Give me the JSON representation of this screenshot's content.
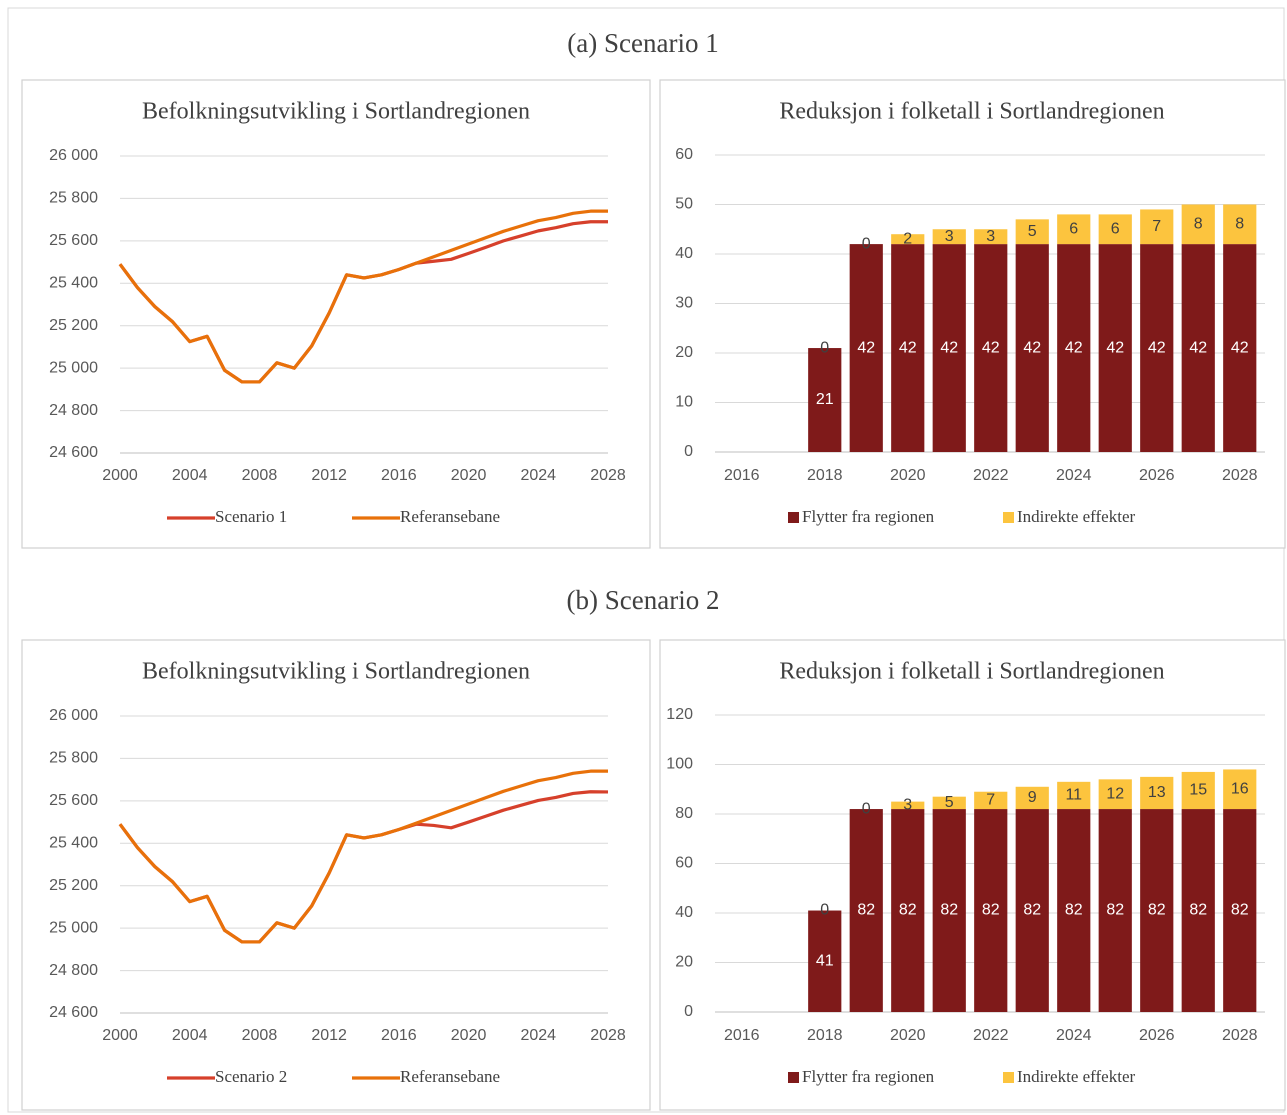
{
  "headings": [
    "(a) Scenario 1",
    "(b) Scenario 2"
  ],
  "chart_data": [
    {
      "type": "line",
      "title": "Befolkningsutvikling i Sortlandregionen",
      "x": [
        2000,
        2001,
        2002,
        2003,
        2004,
        2005,
        2006,
        2007,
        2008,
        2009,
        2010,
        2011,
        2012,
        2013,
        2014,
        2015,
        2016,
        2017,
        2018,
        2019,
        2020,
        2021,
        2022,
        2023,
        2024,
        2025,
        2026,
        2027,
        2028
      ],
      "series": [
        {
          "name": "Scenario 1",
          "color": "#d6402b",
          "values": [
            25490,
            25380,
            25290,
            25220,
            25125,
            25150,
            24990,
            24935,
            24935,
            25025,
            25000,
            25105,
            25260,
            25440,
            25425,
            25440,
            25465,
            25495,
            25504,
            25513,
            25541,
            25570,
            25600,
            25623,
            25647,
            25662,
            25681,
            25690,
            25690
          ]
        },
        {
          "name": "Referansebane",
          "color": "#e8710a",
          "values": [
            25490,
            25380,
            25290,
            25220,
            25125,
            25150,
            24990,
            24935,
            24935,
            25025,
            25000,
            25105,
            25260,
            25440,
            25425,
            25440,
            25465,
            25495,
            25525,
            25555,
            25585,
            25615,
            25645,
            25670,
            25695,
            25710,
            25730,
            25740,
            25740
          ]
        }
      ],
      "xlim": [
        2000,
        2028
      ],
      "xticks": [
        2000,
        2004,
        2008,
        2012,
        2016,
        2020,
        2024,
        2028
      ],
      "ylim": [
        24600,
        26000
      ],
      "yticks": [
        {
          "value": 24600,
          "label": "24 600"
        },
        {
          "value": 24800,
          "label": "24 800"
        },
        {
          "value": 25000,
          "label": "25 000"
        },
        {
          "value": 25200,
          "label": "25 200"
        },
        {
          "value": 25400,
          "label": "25 400"
        },
        {
          "value": 25600,
          "label": "25 600"
        },
        {
          "value": 25800,
          "label": "25 800"
        },
        {
          "value": 26000,
          "label": "26 000"
        }
      ],
      "grid": true,
      "legend": "bottom"
    },
    {
      "type": "stacked_bar",
      "title": "Reduksjon i folketall i Sortlandregionen",
      "categories": [
        2016,
        null,
        2018,
        null,
        2020,
        null,
        2022,
        null,
        2024,
        null,
        2026,
        null,
        2028
      ],
      "series": [
        {
          "name": "Flytter fra regionen",
          "color": "#7f1a1a",
          "values": [
            null,
            null,
            21,
            42,
            42,
            42,
            42,
            42,
            42,
            42,
            42,
            42,
            42
          ]
        },
        {
          "name": "Indirekte effekter",
          "color": "#fcc43e",
          "values": [
            null,
            null,
            0,
            0,
            2,
            3,
            3,
            5,
            6,
            6,
            7,
            8,
            8
          ]
        }
      ],
      "ylim": [
        0,
        60
      ],
      "yticks": [
        0,
        10,
        20,
        30,
        40,
        50,
        60
      ],
      "grid": true,
      "legend": "bottom"
    },
    {
      "type": "line",
      "title": "Befolkningsutvikling i Sortlandregionen",
      "x": [
        2000,
        2001,
        2002,
        2003,
        2004,
        2005,
        2006,
        2007,
        2008,
        2009,
        2010,
        2011,
        2012,
        2013,
        2014,
        2015,
        2016,
        2017,
        2018,
        2019,
        2020,
        2021,
        2022,
        2023,
        2024,
        2025,
        2026,
        2027,
        2028
      ],
      "series": [
        {
          "name": "Scenario 2",
          "color": "#d6402b",
          "values": [
            25490,
            25380,
            25290,
            25220,
            25125,
            25150,
            24990,
            24935,
            24935,
            25025,
            25000,
            25105,
            25260,
            25440,
            25425,
            25440,
            25465,
            25490,
            25484,
            25473,
            25500,
            25528,
            25556,
            25579,
            25602,
            25616,
            25635,
            25643,
            25642
          ]
        },
        {
          "name": "Referansebane",
          "color": "#e8710a",
          "values": [
            25490,
            25380,
            25290,
            25220,
            25125,
            25150,
            24990,
            24935,
            24935,
            25025,
            25000,
            25105,
            25260,
            25440,
            25425,
            25440,
            25465,
            25495,
            25525,
            25555,
            25585,
            25615,
            25645,
            25670,
            25695,
            25710,
            25730,
            25740,
            25740
          ]
        }
      ],
      "xlim": [
        2000,
        2028
      ],
      "xticks": [
        2000,
        2004,
        2008,
        2012,
        2016,
        2020,
        2024,
        2028
      ],
      "ylim": [
        24600,
        26000
      ],
      "yticks": [
        {
          "value": 24600,
          "label": "24 600"
        },
        {
          "value": 24800,
          "label": "24 800"
        },
        {
          "value": 25000,
          "label": "25 000"
        },
        {
          "value": 25200,
          "label": "25 200"
        },
        {
          "value": 25400,
          "label": "25 400"
        },
        {
          "value": 25600,
          "label": "25 600"
        },
        {
          "value": 25800,
          "label": "25 800"
        },
        {
          "value": 26000,
          "label": "26 000"
        }
      ],
      "grid": true,
      "legend": "bottom"
    },
    {
      "type": "stacked_bar",
      "title": "Reduksjon i folketall i Sortlandregionen",
      "categories": [
        2016,
        null,
        2018,
        null,
        2020,
        null,
        2022,
        null,
        2024,
        null,
        2026,
        null,
        2028
      ],
      "series": [
        {
          "name": "Flytter fra regionen",
          "color": "#7f1a1a",
          "values": [
            null,
            null,
            41,
            82,
            82,
            82,
            82,
            82,
            82,
            82,
            82,
            82,
            82
          ]
        },
        {
          "name": "Indirekte effekter",
          "color": "#fcc43e",
          "values": [
            null,
            null,
            0,
            0,
            3,
            5,
            7,
            9,
            11,
            12,
            13,
            15,
            16
          ]
        }
      ],
      "ylim": [
        0,
        120
      ],
      "yticks": [
        0,
        20,
        40,
        60,
        80,
        100,
        120
      ],
      "grid": true,
      "legend": "bottom"
    }
  ]
}
